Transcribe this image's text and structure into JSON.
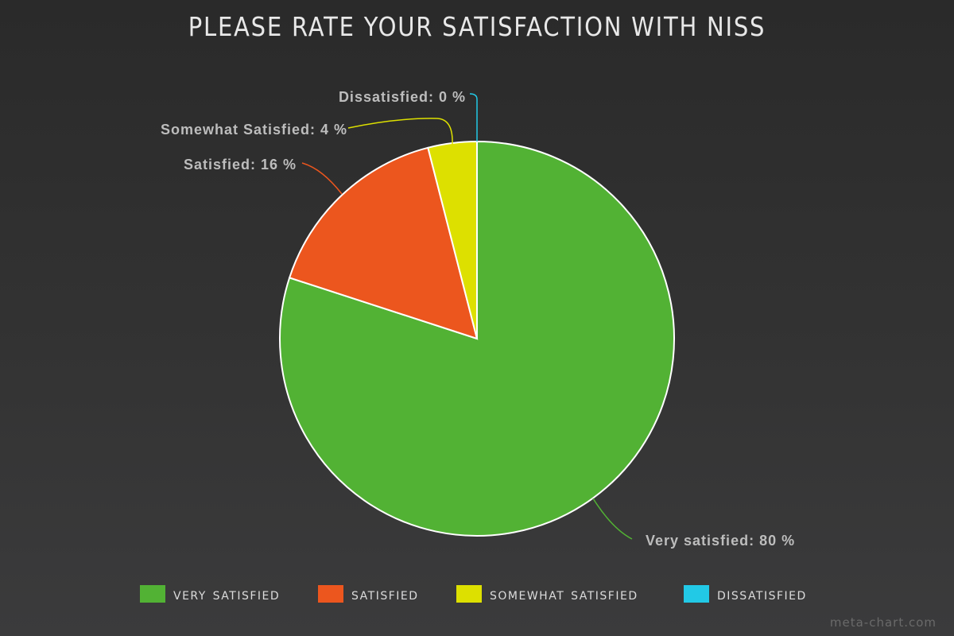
{
  "chart_data": {
    "type": "pie",
    "title": "PLEASE RATE YOUR SATISFACTION WITH NISS",
    "categories": [
      "Very satisfied",
      "Satisfied",
      "Somewhat Satisfied",
      "Dissatisfied"
    ],
    "values": [
      80,
      16,
      4,
      0
    ],
    "unit": "%",
    "colors": [
      "#52b234",
      "#ec561e",
      "#dde000",
      "#22c9e6"
    ],
    "legend": {
      "position": "bottom",
      "labels": [
        "very satisfied",
        "satisfied",
        "somewhat satisfied",
        "dissatisfied"
      ]
    },
    "data_labels": [
      "Very satisfied: 80 %",
      "Satisfied: 16 %",
      "Somewhat Satisfied: 4 %",
      "Dissatisfied: 0 %"
    ]
  },
  "watermark": "meta-chart.com"
}
